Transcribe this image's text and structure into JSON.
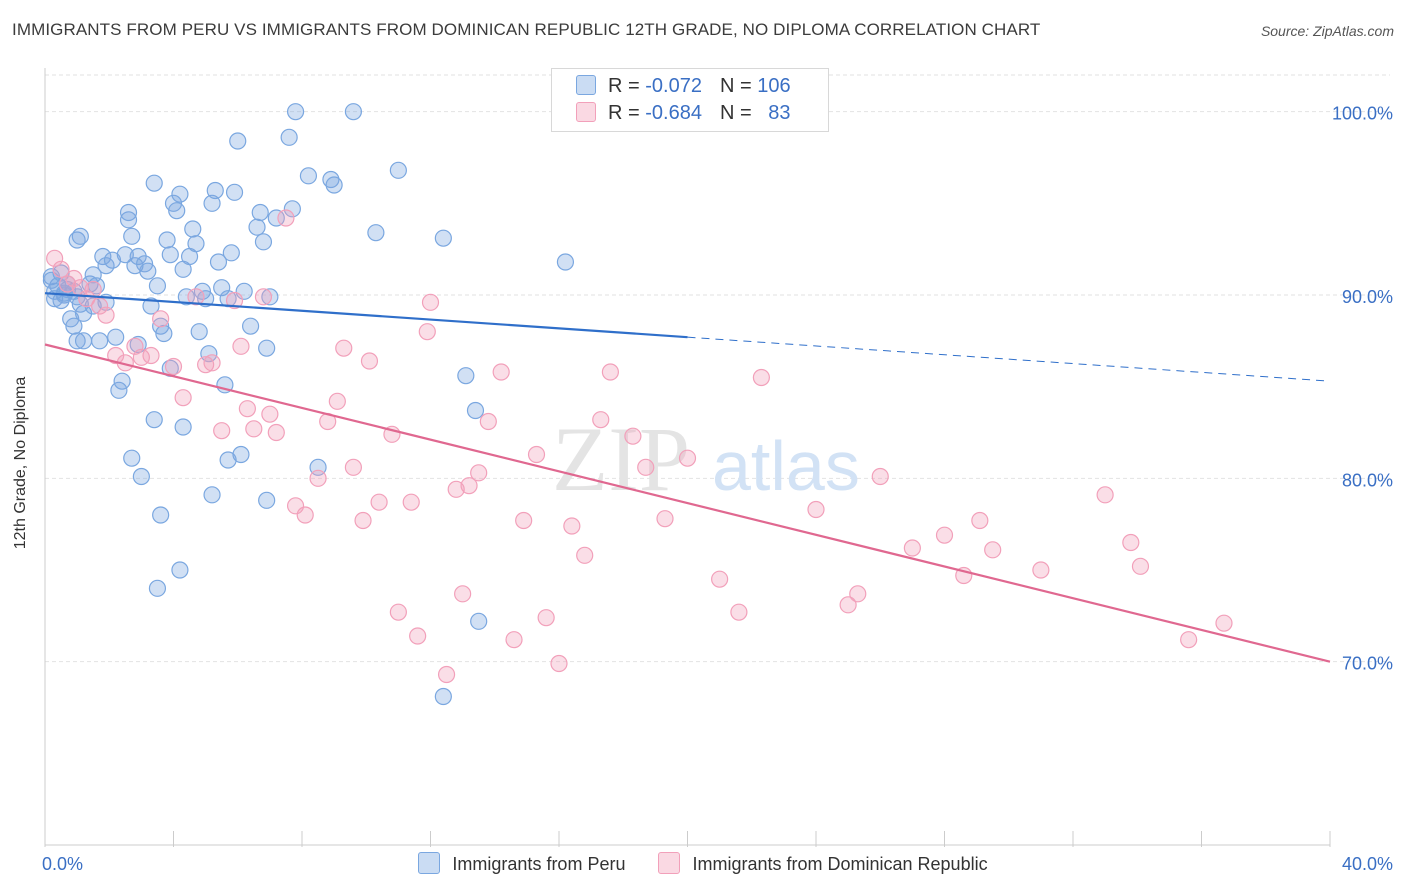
{
  "title": "IMMIGRANTS FROM PERU VS IMMIGRANTS FROM DOMINICAN REPUBLIC 12TH GRADE, NO DIPLOMA CORRELATION CHART",
  "source": "Source: ZipAtlas.com",
  "watermark": {
    "zip": "ZIP",
    "atlas": "atlas"
  },
  "legend": {
    "rows": [
      {
        "r_label": "R = ",
        "r_value": "-0.072",
        "n_label": "N = ",
        "n_value": "106",
        "color": "#7aa7e0"
      },
      {
        "r_label": "R = ",
        "r_value": "-0.684",
        "n_label": "N = ",
        "n_value": "83",
        "color": "#f2a0ba"
      }
    ]
  },
  "chart_data": {
    "type": "scatter",
    "xlabel": "",
    "ylabel": "12th Grade, No Diploma",
    "xlim": [
      0,
      40
    ],
    "ylim": [
      60,
      102
    ],
    "x_tick_labels": [
      {
        "value": 0,
        "label": "0.0%"
      },
      {
        "value": 40,
        "label": "40.0%"
      }
    ],
    "y_tick_labels": [
      {
        "value": 100,
        "label": "100.0%"
      },
      {
        "value": 90,
        "label": "90.0%"
      },
      {
        "value": 80,
        "label": "80.0%"
      },
      {
        "value": 70,
        "label": "70.0%"
      }
    ],
    "grid": true,
    "legend_position": "top-center",
    "series": [
      {
        "name": "Immigrants from Peru",
        "color": "#7aa7e0",
        "line_color": "#2f6fca",
        "trend": {
          "x0": 0,
          "y0": 90.1,
          "x1": 20,
          "y1": 87.7,
          "dashed_to_x": 40,
          "dashed_to_y": 85.3
        },
        "points": [
          [
            0.2,
            91.0
          ],
          [
            0.3,
            89.8
          ],
          [
            0.4,
            90.5
          ],
          [
            0.5,
            91.2
          ],
          [
            0.6,
            90.0
          ],
          [
            0.7,
            90.6
          ],
          [
            0.8,
            88.7
          ],
          [
            0.9,
            90.2
          ],
          [
            1.0,
            89.9
          ],
          [
            1.1,
            89.5
          ],
          [
            0.3,
            90.2
          ],
          [
            0.5,
            89.7
          ],
          [
            0.6,
            90.1
          ],
          [
            0.9,
            88.3
          ],
          [
            1.0,
            87.5
          ],
          [
            1.2,
            89.0
          ],
          [
            1.4,
            90.6
          ],
          [
            1.5,
            91.1
          ],
          [
            1.7,
            87.5
          ],
          [
            1.8,
            92.1
          ],
          [
            1.0,
            93.0
          ],
          [
            1.1,
            93.2
          ],
          [
            1.5,
            89.4
          ],
          [
            1.9,
            89.6
          ],
          [
            1.9,
            91.6
          ],
          [
            2.1,
            91.9
          ],
          [
            2.2,
            87.7
          ],
          [
            2.3,
            84.8
          ],
          [
            2.4,
            85.3
          ],
          [
            2.5,
            92.2
          ],
          [
            2.6,
            94.1
          ],
          [
            2.6,
            94.5
          ],
          [
            2.7,
            93.2
          ],
          [
            2.8,
            91.6
          ],
          [
            2.9,
            92.1
          ],
          [
            2.9,
            87.3
          ],
          [
            3.0,
            80.1
          ],
          [
            3.1,
            91.7
          ],
          [
            3.2,
            91.3
          ],
          [
            3.3,
            89.4
          ],
          [
            3.4,
            83.2
          ],
          [
            3.4,
            96.1
          ],
          [
            3.5,
            90.5
          ],
          [
            3.6,
            88.3
          ],
          [
            3.7,
            87.9
          ],
          [
            3.8,
            93.0
          ],
          [
            3.9,
            92.2
          ],
          [
            3.9,
            86.0
          ],
          [
            4.0,
            95.0
          ],
          [
            4.1,
            94.6
          ],
          [
            4.2,
            95.5
          ],
          [
            4.3,
            91.4
          ],
          [
            4.4,
            89.9
          ],
          [
            4.5,
            92.1
          ],
          [
            4.6,
            93.6
          ],
          [
            4.7,
            92.8
          ],
          [
            4.8,
            88.0
          ],
          [
            4.9,
            90.2
          ],
          [
            5.0,
            89.8
          ],
          [
            5.1,
            86.8
          ],
          [
            5.2,
            95.0
          ],
          [
            5.3,
            95.7
          ],
          [
            5.4,
            91.8
          ],
          [
            5.5,
            90.4
          ],
          [
            5.6,
            85.1
          ],
          [
            5.7,
            89.8
          ],
          [
            5.8,
            92.3
          ],
          [
            5.9,
            95.6
          ],
          [
            6.0,
            98.4
          ],
          [
            6.1,
            81.3
          ],
          [
            6.2,
            90.2
          ],
          [
            6.4,
            88.3
          ],
          [
            6.6,
            93.7
          ],
          [
            6.7,
            94.5
          ],
          [
            6.8,
            92.9
          ],
          [
            6.9,
            87.1
          ],
          [
            7.0,
            89.9
          ],
          [
            7.2,
            94.2
          ],
          [
            7.6,
            98.6
          ],
          [
            7.7,
            94.7
          ],
          [
            7.8,
            100.0
          ],
          [
            8.2,
            96.5
          ],
          [
            8.5,
            80.6
          ],
          [
            8.9,
            96.3
          ],
          [
            9.0,
            96.0
          ],
          [
            9.6,
            100.0
          ],
          [
            10.3,
            93.4
          ],
          [
            11.0,
            96.8
          ],
          [
            12.4,
            93.1
          ],
          [
            13.1,
            85.6
          ],
          [
            13.4,
            83.7
          ],
          [
            13.5,
            72.2
          ],
          [
            12.4,
            68.1
          ],
          [
            16.2,
            91.8
          ],
          [
            3.6,
            78.0
          ],
          [
            3.5,
            74.0
          ],
          [
            4.2,
            75.0
          ],
          [
            4.3,
            82.8
          ],
          [
            5.2,
            79.1
          ],
          [
            5.7,
            81.0
          ],
          [
            6.9,
            78.8
          ],
          [
            2.7,
            81.1
          ],
          [
            1.2,
            87.5
          ],
          [
            0.2,
            90.8
          ],
          [
            1.6,
            90.5
          ],
          [
            0.7,
            90.3
          ]
        ]
      },
      {
        "name": "Immigrants from Dominican Republic",
        "color": "#f2a0ba",
        "line_color": "#e06890",
        "trend": {
          "x0": 0,
          "y0": 87.3,
          "x1": 40,
          "y1": 70.0
        },
        "points": [
          [
            0.3,
            92.0
          ],
          [
            0.5,
            91.4
          ],
          [
            0.7,
            90.6
          ],
          [
            0.9,
            90.9
          ],
          [
            1.1,
            90.4
          ],
          [
            1.3,
            89.8
          ],
          [
            1.5,
            90.3
          ],
          [
            1.7,
            89.4
          ],
          [
            1.9,
            88.9
          ],
          [
            2.2,
            86.7
          ],
          [
            2.5,
            86.3
          ],
          [
            2.8,
            87.2
          ],
          [
            3.0,
            86.6
          ],
          [
            3.3,
            86.7
          ],
          [
            3.6,
            88.7
          ],
          [
            4.0,
            86.1
          ],
          [
            4.3,
            84.4
          ],
          [
            4.7,
            89.9
          ],
          [
            5.0,
            86.2
          ],
          [
            5.2,
            86.3
          ],
          [
            5.5,
            82.6
          ],
          [
            5.9,
            89.7
          ],
          [
            6.1,
            87.2
          ],
          [
            6.3,
            83.8
          ],
          [
            6.5,
            82.7
          ],
          [
            6.8,
            89.9
          ],
          [
            7.0,
            83.5
          ],
          [
            7.2,
            82.5
          ],
          [
            7.5,
            94.2
          ],
          [
            7.8,
            78.5
          ],
          [
            8.1,
            78.0
          ],
          [
            8.5,
            80.0
          ],
          [
            8.8,
            83.1
          ],
          [
            9.1,
            84.2
          ],
          [
            9.3,
            87.1
          ],
          [
            9.6,
            80.6
          ],
          [
            9.9,
            77.7
          ],
          [
            10.1,
            86.4
          ],
          [
            10.4,
            78.7
          ],
          [
            10.8,
            82.4
          ],
          [
            11.0,
            72.7
          ],
          [
            11.4,
            78.7
          ],
          [
            11.6,
            71.4
          ],
          [
            11.9,
            88.0
          ],
          [
            12.0,
            89.6
          ],
          [
            12.5,
            69.3
          ],
          [
            12.8,
            79.4
          ],
          [
            13.0,
            73.7
          ],
          [
            13.2,
            79.6
          ],
          [
            13.5,
            80.3
          ],
          [
            13.8,
            83.1
          ],
          [
            14.2,
            85.8
          ],
          [
            14.6,
            71.2
          ],
          [
            14.9,
            77.7
          ],
          [
            15.3,
            81.3
          ],
          [
            15.6,
            72.4
          ],
          [
            16.0,
            69.9
          ],
          [
            16.4,
            77.4
          ],
          [
            16.8,
            75.8
          ],
          [
            17.3,
            83.2
          ],
          [
            17.6,
            85.8
          ],
          [
            18.3,
            82.3
          ],
          [
            18.7,
            80.6
          ],
          [
            19.3,
            77.8
          ],
          [
            20.0,
            81.1
          ],
          [
            21.0,
            74.5
          ],
          [
            21.6,
            72.7
          ],
          [
            22.3,
            85.5
          ],
          [
            24.0,
            78.3
          ],
          [
            25.0,
            73.1
          ],
          [
            25.3,
            73.7
          ],
          [
            26.0,
            80.1
          ],
          [
            27.0,
            76.2
          ],
          [
            28.0,
            76.9
          ],
          [
            28.6,
            74.7
          ],
          [
            29.1,
            77.7
          ],
          [
            29.5,
            76.1
          ],
          [
            31.0,
            75.0
          ],
          [
            33.0,
            79.1
          ],
          [
            33.8,
            76.5
          ],
          [
            34.1,
            75.2
          ],
          [
            35.6,
            71.2
          ],
          [
            36.7,
            72.1
          ]
        ]
      }
    ]
  }
}
